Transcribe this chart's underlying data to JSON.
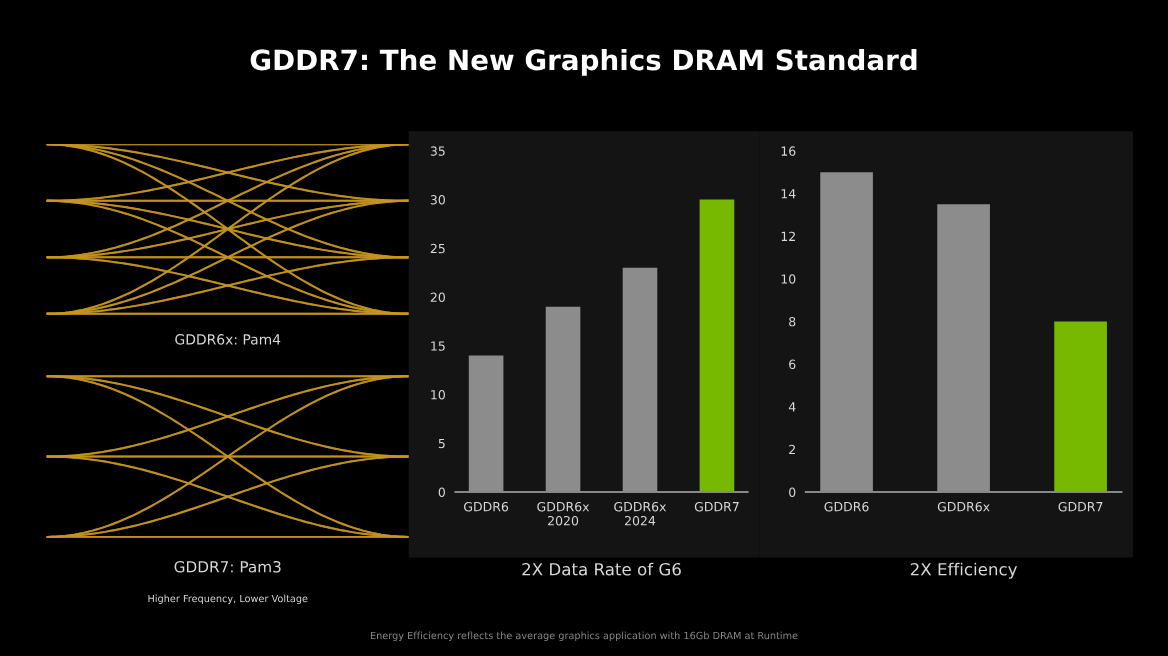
{
  "chart_data": [
    {
      "type": "other",
      "title": "GDDR7: The New Graphics DRAM Standard",
      "annotations": [
        "GDDR6x: Pam4",
        "GDDR7: Pam3",
        "Higher Frequency, Lower Voltage",
        "Energy Efficiency reflects the average graphics application with 16Gb DRAM at Runtime"
      ]
    },
    {
      "type": "bar",
      "xlabel": "2X Data Rate of G6",
      "categories": [
        "GDDR6",
        "GDDR6x\n2020",
        "GDDR6x\n2024",
        "GDDR7"
      ],
      "values": [
        14,
        19,
        23,
        30
      ],
      "colors": [
        "#8c8c8c",
        "#8c8c8c",
        "#8c8c8c",
        "#76b900"
      ],
      "ylim": [
        0,
        35
      ],
      "yticks": [
        0,
        5,
        10,
        15,
        20,
        25,
        30,
        35
      ]
    },
    {
      "type": "bar",
      "xlabel": "2X Efficiency",
      "categories": [
        "GDDR6",
        "GDDR6x",
        "GDDR7"
      ],
      "values": [
        15,
        13.5,
        8
      ],
      "colors": [
        "#8c8c8c",
        "#8c8c8c",
        "#76b900"
      ],
      "ylim": [
        0,
        16
      ],
      "yticks": [
        0,
        2,
        4,
        6,
        8,
        10,
        12,
        14,
        16
      ]
    }
  ]
}
